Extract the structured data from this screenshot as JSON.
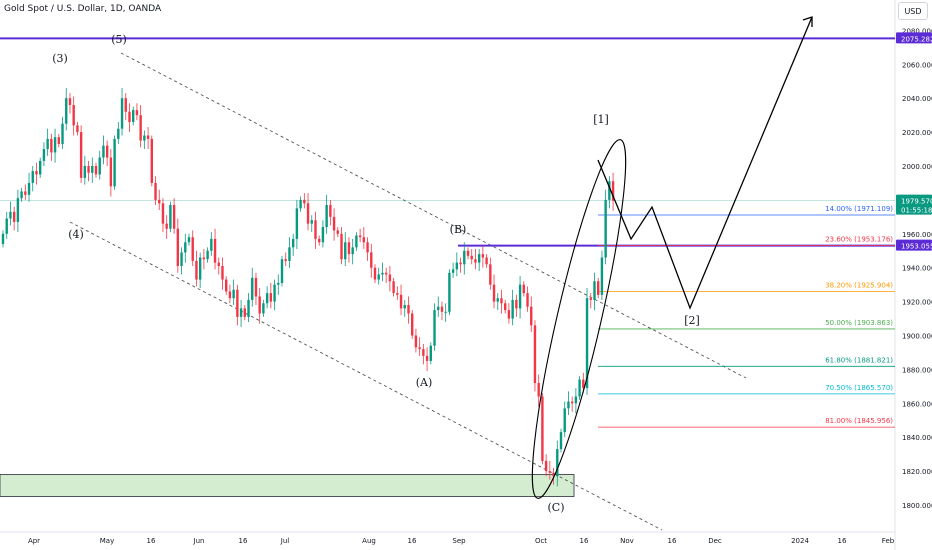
{
  "header": {
    "title": "Gold Spot / U.S. Dollar, 1D, OANDA",
    "currency_button": "USD"
  },
  "colors": {
    "up": "#089981",
    "down": "#f23645",
    "level_line": "#5b2bd6",
    "fib_blue": "#2962ff",
    "fib_orange": "#ff9800",
    "fib_green": "#4caf50",
    "fib_teal": "#089981",
    "fib_cyan": "#00bcd4",
    "fib_red": "#f23645",
    "demand_zone": "#d4ecd0"
  },
  "chart_data": {
    "type": "candlestick",
    "symbol": "XAUUSD",
    "timeframe": "1D",
    "ylim": [
      1790,
      2095
    ],
    "y_ticks": [
      1800,
      1820,
      1840,
      1860,
      1880,
      1900,
      1920,
      1940,
      1960,
      1980,
      2000,
      2020,
      2040,
      2060,
      2080
    ],
    "x_ticks": [
      "Apr",
      "May",
      "16",
      "Jun",
      "16",
      "Jul",
      "Aug",
      "16",
      "Sep",
      "Oct",
      "16",
      "Nov",
      "16",
      "Dec",
      "2024",
      "16",
      "Feb"
    ],
    "price_labels": [
      {
        "value": 2075.282,
        "text": "2075.282",
        "kind": "level"
      },
      {
        "value": 1979.57,
        "text": "1979.570",
        "sub": "01:55:18",
        "kind": "last"
      },
      {
        "value": 1953.055,
        "text": "1953.055",
        "kind": "level"
      }
    ],
    "horizontal_levels": [
      2075.282,
      1953.055
    ],
    "fib_levels": [
      {
        "label": "14.00% (1971.109)",
        "value": 1971.109,
        "color": "#2962ff"
      },
      {
        "label": "23.60% (1953.176)",
        "value": 1953.176,
        "color": "#f23645"
      },
      {
        "label": "38.20% (1925.904)",
        "value": 1925.904,
        "color": "#ff9800"
      },
      {
        "label": "50.00% (1903.863)",
        "value": 1903.863,
        "color": "#4caf50"
      },
      {
        "label": "61.80% (1881.821)",
        "value": 1881.821,
        "color": "#089981"
      },
      {
        "label": "70.50% (1865.570)",
        "value": 1865.57,
        "color": "#00bcd4"
      },
      {
        "label": "81.00% (1845.956)",
        "value": 1845.956,
        "color": "#f23645"
      }
    ],
    "wave_labels": [
      "(3)",
      "(5)",
      "(4)",
      "(B)",
      "(A)",
      "(C)",
      "[1]",
      "[2]"
    ],
    "demand_zone": [
      1805,
      1818
    ],
    "closes": [
      1960,
      1969,
      1973,
      1967,
      1981,
      1985,
      1983,
      1990,
      1997,
      1995,
      2003,
      2010,
      2016,
      2008,
      2017,
      2013,
      2025,
      2040,
      2036,
      2024,
      2020,
      1993,
      2000,
      1996,
      2000,
      1995,
      2005,
      2012,
      2005,
      1988,
      2016,
      2022,
      2040,
      2032,
      2026,
      2033,
      2030,
      2015,
      2018,
      2016,
      1990,
      1980,
      1978,
      1966,
      1963,
      1977,
      1963,
      1941,
      1949,
      1955,
      1958,
      1944,
      1933,
      1946,
      1945,
      1950,
      1957,
      1943,
      1941,
      1933,
      1926,
      1922,
      1927,
      1911,
      1916,
      1911,
      1921,
      1934,
      1923,
      1913,
      1919,
      1925,
      1920,
      1930,
      1931,
      1945,
      1944,
      1952,
      1957,
      1975,
      1980,
      1978,
      1966,
      1968,
      1957,
      1955,
      1964,
      1977,
      1970,
      1962,
      1960,
      1945,
      1955,
      1948,
      1952,
      1959,
      1958,
      1955,
      1949,
      1940,
      1933,
      1936,
      1937,
      1936,
      1932,
      1925,
      1924,
      1916,
      1918,
      1913,
      1900,
      1893,
      1892,
      1888,
      1885,
      1894,
      1915,
      1917,
      1914,
      1914,
      1937,
      1939,
      1943,
      1942,
      1950,
      1947,
      1945,
      1943,
      1948,
      1946,
      1942,
      1930,
      1920,
      1922,
      1919,
      1915,
      1910,
      1921,
      1916,
      1930,
      1925,
      1917,
      1906,
      1872,
      1864,
      1826,
      1820,
      1819,
      1817,
      1833,
      1843,
      1857,
      1861,
      1860,
      1864,
      1874,
      1869,
      1922,
      1921,
      1932,
      1924,
      1946,
      1980,
      1991,
      1979.57
    ]
  }
}
